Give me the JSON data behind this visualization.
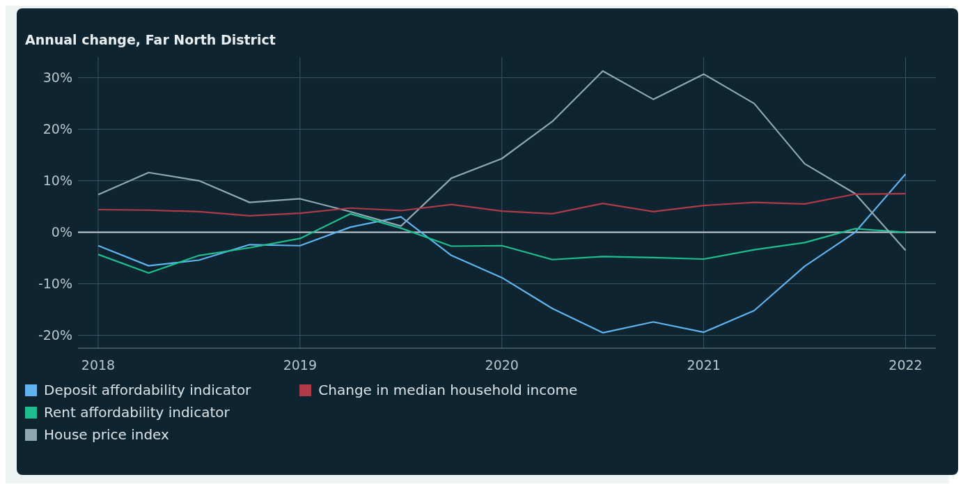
{
  "chart_data": {
    "type": "line",
    "title": "Annual change, Far North District",
    "x": [
      2018,
      2018.25,
      2018.5,
      2018.75,
      2019,
      2019.25,
      2019.5,
      2019.75,
      2020,
      2020.25,
      2020.5,
      2020.75,
      2021,
      2021.25,
      2021.5,
      2021.75,
      2022
    ],
    "series": [
      {
        "name": "Deposit affordability indicator",
        "color": "#5fb4ee",
        "values": [
          -2.6,
          -6.5,
          -5.4,
          -2.4,
          -2.6,
          1.0,
          3.0,
          -4.5,
          -8.8,
          -14.8,
          -19.5,
          -17.4,
          -19.4,
          -15.2,
          -6.6,
          0,
          11.3
        ]
      },
      {
        "name": "Rent affordability indicator",
        "color": "#1dbf8f",
        "values": [
          -4.3,
          -7.9,
          -4.5,
          -3.0,
          -1.2,
          3.6,
          0.8,
          -2.7,
          -2.6,
          -5.3,
          -4.7,
          -4.9,
          -5.2,
          -3.4,
          -2.0,
          0.7,
          0
        ]
      },
      {
        "name": "House price index",
        "color": "#8fa9b3",
        "values": [
          7.3,
          11.6,
          10.0,
          5.8,
          6.5,
          4.0,
          1.2,
          10.5,
          14.3,
          21.5,
          31.3,
          25.8,
          30.7,
          25.0,
          13.3,
          7.5,
          -3.5
        ]
      },
      {
        "name": "Change in median household income",
        "color": "#b03a48",
        "values": [
          4.4,
          4.3,
          4.0,
          3.2,
          3.7,
          4.7,
          4.2,
          5.4,
          4.1,
          3.6,
          5.6,
          4.0,
          5.2,
          5.8,
          5.5,
          7.4,
          7.5
        ]
      }
    ],
    "xlim": [
      2017.9,
      2022.15
    ],
    "xticks": [
      2018,
      2019,
      2020,
      2021,
      2022
    ],
    "ylim": [
      -22.5,
      34
    ],
    "yticks": [
      {
        "value": -20,
        "label": "-20%"
      },
      {
        "value": -10,
        "label": "-10%"
      },
      {
        "value": 0,
        "label": "0%"
      },
      {
        "value": 10,
        "label": "10%"
      },
      {
        "value": 20,
        "label": "20%"
      },
      {
        "value": 30,
        "label": "30%"
      }
    ],
    "ref_lines": [
      {
        "axis": "y",
        "value": 0,
        "color": "#c8d2d6"
      }
    ],
    "grid": true,
    "legend": "bottom",
    "marker": "none",
    "line_style": "solid"
  }
}
